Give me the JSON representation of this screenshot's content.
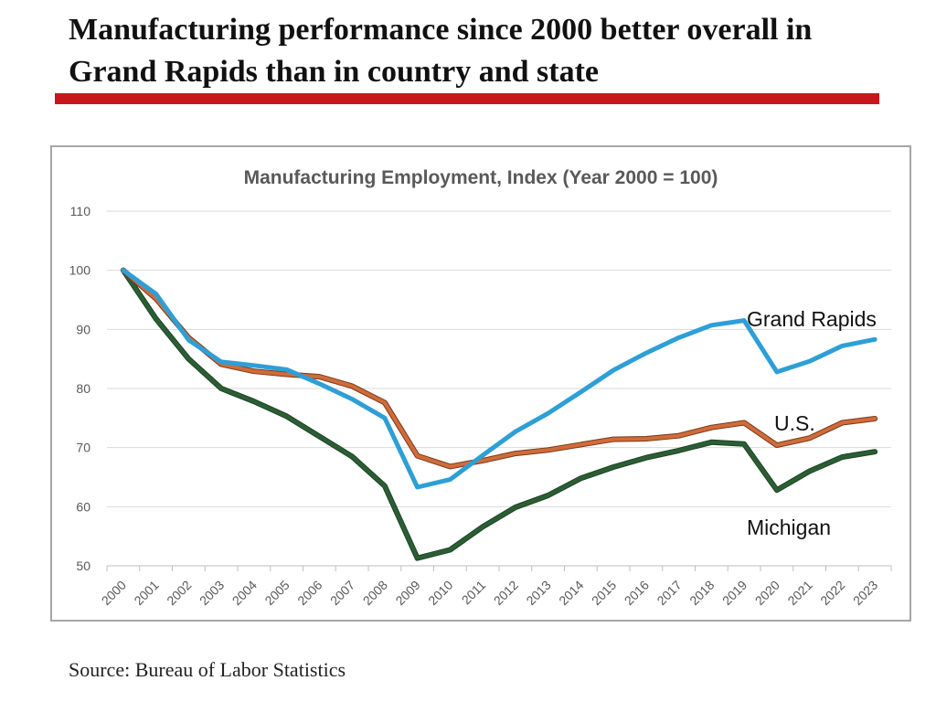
{
  "slide": {
    "title": "Manufacturing performance since 2000 better overall in Grand Rapids than in country and state",
    "accent_color": "#c8161d",
    "source": "Source: Bureau of Labor Statistics"
  },
  "chart_data": {
    "type": "line",
    "title": "Manufacturing Employment, Index (Year 2000 = 100)",
    "xlabel": "",
    "ylabel": "",
    "ylim": [
      50,
      110
    ],
    "yticks": [
      50,
      60,
      70,
      80,
      90,
      100,
      110
    ],
    "grid": true,
    "categories": [
      "2000",
      "2001",
      "2002",
      "2003",
      "2004",
      "2005",
      "2006",
      "2007",
      "2008",
      "2009",
      "2010",
      "2011",
      "2012",
      "2013",
      "2014",
      "2015",
      "2016",
      "2017",
      "2018",
      "2019",
      "2020",
      "2021",
      "2022",
      "2023"
    ],
    "series": [
      {
        "name": "Grand Rapids",
        "label": "Grand Rapids",
        "color": "#2e9fd6",
        "values": [
          100,
          96,
          88.2,
          84.5,
          83.9,
          83.2,
          80.8,
          78.2,
          75.0,
          63.3,
          64.6,
          68.7,
          72.7,
          75.8,
          79.4,
          83.1,
          86.0,
          88.6,
          90.7,
          91.5,
          82.8,
          84.6,
          87.2,
          88.3
        ]
      },
      {
        "name": "U.S.",
        "label": "U.S.",
        "color": "#d06c3a",
        "values": [
          100,
          95.2,
          88.6,
          84.1,
          82.9,
          82.4,
          82.0,
          80.4,
          77.6,
          68.6,
          66.8,
          67.8,
          69.0,
          69.6,
          70.5,
          71.4,
          71.5,
          72.0,
          73.4,
          74.2,
          70.4,
          71.6,
          74.2,
          74.9
        ]
      },
      {
        "name": "Michigan",
        "label": "Michigan",
        "color": "#2b5e34",
        "values": [
          100,
          91.8,
          85.0,
          80.0,
          77.8,
          75.3,
          71.9,
          68.5,
          63.5,
          51.3,
          52.7,
          56.6,
          59.9,
          61.9,
          64.8,
          66.7,
          68.3,
          69.5,
          70.9,
          70.6,
          62.8,
          66.0,
          68.4,
          69.3
        ]
      }
    ]
  }
}
